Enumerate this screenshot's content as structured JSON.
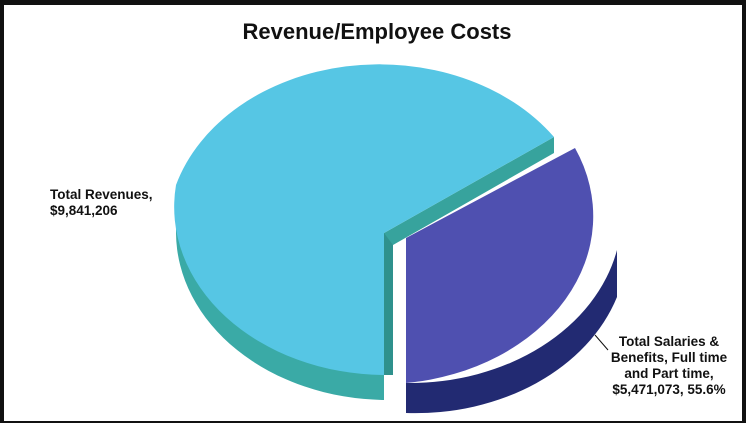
{
  "chart_data": {
    "type": "pie",
    "title": "Revenue/Employee Costs",
    "style": "3d-exploded",
    "slices": [
      {
        "id": "total-revenues",
        "label_lines": [
          "Total Revenues,",
          "$9,841,206"
        ],
        "value": 9841206,
        "color": "#56c6e4",
        "side_color": "#3aaaa6"
      },
      {
        "id": "total-salaries",
        "label_lines": [
          "Total Salaries &",
          "Benefits, Full time",
          "and Part time,",
          "$5,471,073,  55.6%"
        ],
        "value": 5471073,
        "percent": 55.6,
        "color": "#4f50b0",
        "side_color": "#222a72"
      }
    ]
  }
}
